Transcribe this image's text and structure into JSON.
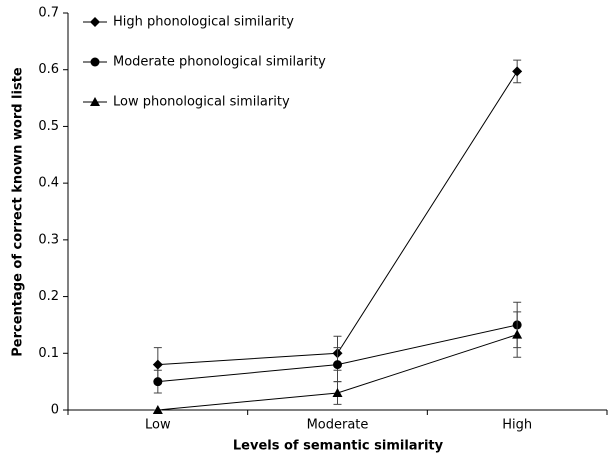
{
  "chart_data": {
    "type": "line",
    "x_label": "Levels of semantic similarity",
    "y_label": "Percentage of correct known word liste",
    "categories": [
      "Low",
      "Moderate",
      "High"
    ],
    "series": [
      {
        "name": "High phonological similarity",
        "color": "#000000",
        "marker": "diamond",
        "values": [
          0.08,
          0.1,
          0.597
        ],
        "errors": [
          0.03,
          0.03,
          0.02
        ]
      },
      {
        "name": "Moderate phonological similarity",
        "color": "#000000",
        "marker": "circle",
        "values": [
          0.05,
          0.08,
          0.15
        ],
        "errors": [
          0.02,
          0.03,
          0.04
        ]
      },
      {
        "name": "Low phonological similarity",
        "color": "#000000",
        "marker": "triangle",
        "values": [
          0,
          0.03,
          0.133
        ],
        "errors": [
          0,
          0.02,
          0.04
        ]
      }
    ],
    "ylim": [
      0,
      0.7
    ],
    "yticks": [
      0,
      0.1,
      0.2,
      0.3,
      0.4,
      0.5,
      0.6,
      0.7
    ],
    "legend": "upper left",
    "grid": false
  }
}
